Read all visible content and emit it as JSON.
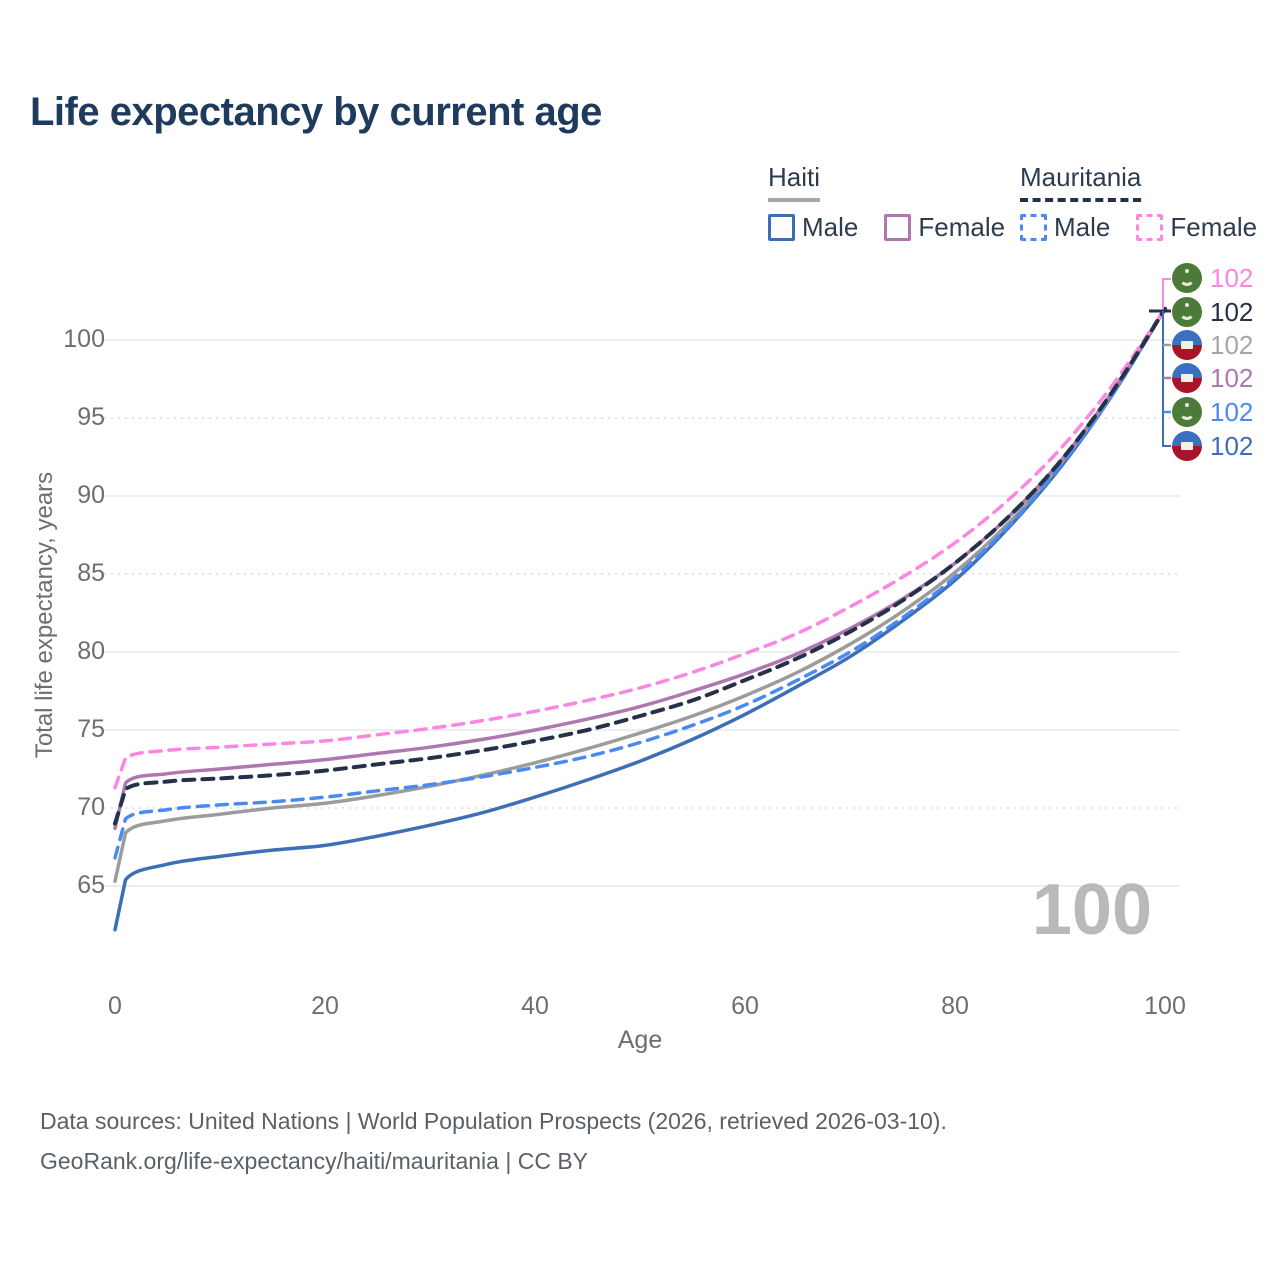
{
  "title": "Life expectancy by current age",
  "legend": {
    "groups": [
      {
        "name": "Haiti",
        "line_style": "solid",
        "underline_color": "#a8a8a8",
        "items": [
          {
            "label": "Male",
            "color": "#3d6fb7"
          },
          {
            "label": "Female",
            "color": "#b077ae"
          }
        ]
      },
      {
        "name": "Mauritania",
        "line_style": "dashed",
        "underline_color": "#243149",
        "items": [
          {
            "label": "Male",
            "color": "#4b8af2"
          },
          {
            "label": "Female",
            "color": "#fb87e0"
          }
        ]
      }
    ]
  },
  "axes": {
    "x": {
      "label": "Age",
      "ticks": [
        0,
        20,
        40,
        60,
        80,
        100
      ],
      "range": [
        0,
        100
      ]
    },
    "y": {
      "label": "Total life expectancy, years",
      "ticks": [
        {
          "value": 65,
          "grid": "solid"
        },
        {
          "value": 70,
          "grid": "dotted"
        },
        {
          "value": 75,
          "grid": "solid"
        },
        {
          "value": 80,
          "grid": "solid"
        },
        {
          "value": 85,
          "grid": "dotted"
        },
        {
          "value": 90,
          "grid": "solid"
        },
        {
          "value": 95,
          "grid": "dotted"
        },
        {
          "value": 100,
          "grid": "solid"
        }
      ],
      "range": [
        62,
        103
      ]
    }
  },
  "watermark": "100",
  "end_labels": [
    {
      "country": "mauritania",
      "value": "102",
      "color": "#fb87e0"
    },
    {
      "country": "mauritania",
      "value": "102",
      "color": "#243149"
    },
    {
      "country": "haiti",
      "value": "102",
      "color": "#a6a6a6"
    },
    {
      "country": "haiti",
      "value": "102",
      "color": "#b077ae"
    },
    {
      "country": "mauritania",
      "value": "102",
      "color": "#4b8af2"
    },
    {
      "country": "haiti",
      "value": "102",
      "color": "#3d6fb7"
    }
  ],
  "footer": {
    "line1": "Data sources: United Nations | World Population Prospects (2026, retrieved 2026-03-10).",
    "line2": "GeoRank.org/life-expectancy/haiti/mauritania | CC BY"
  },
  "chart_data": {
    "type": "line",
    "title": "Life expectancy by current age",
    "xlabel": "Age",
    "ylabel": "Total life expectancy, years",
    "xlim": [
      0,
      100
    ],
    "ylim": [
      62,
      103
    ],
    "grid": "horizontal-only",
    "legend_position": "top-right",
    "x": [
      0,
      1,
      5,
      10,
      15,
      20,
      25,
      30,
      35,
      40,
      45,
      50,
      55,
      60,
      65,
      70,
      75,
      80,
      85,
      90,
      95,
      100
    ],
    "series": [
      {
        "name": "Haiti Male",
        "country": "Haiti",
        "sex": "Male",
        "style": "solid",
        "color": "#3d6fb7",
        "values": [
          62.2,
          65.4,
          66.4,
          66.9,
          67.3,
          67.6,
          68.2,
          68.9,
          69.7,
          70.7,
          71.8,
          73.0,
          74.4,
          76.0,
          77.8,
          79.7,
          82.0,
          84.6,
          87.9,
          91.8,
          96.5,
          102
        ]
      },
      {
        "name": "Haiti",
        "country": "Haiti",
        "sex": "Both",
        "style": "solid",
        "color": "#9c9c9c",
        "values": [
          65.3,
          68.4,
          69.2,
          69.6,
          70.0,
          70.3,
          70.8,
          71.4,
          72.1,
          72.9,
          73.8,
          74.8,
          75.9,
          77.2,
          78.7,
          80.5,
          82.6,
          85.1,
          88.2,
          92.0,
          96.6,
          102
        ]
      },
      {
        "name": "Mauritania Male",
        "country": "Mauritania",
        "sex": "Male",
        "style": "dashed",
        "color": "#4b8af2",
        "values": [
          66.8,
          69.3,
          69.9,
          70.2,
          70.4,
          70.7,
          71.1,
          71.5,
          72.0,
          72.6,
          73.3,
          74.2,
          75.3,
          76.6,
          78.2,
          80.0,
          82.2,
          84.8,
          88.0,
          91.9,
          96.5,
          102
        ]
      },
      {
        "name": "Haiti Female",
        "country": "Haiti",
        "sex": "Female",
        "style": "solid",
        "color": "#b077ae",
        "values": [
          68.7,
          71.6,
          72.2,
          72.5,
          72.8,
          73.1,
          73.5,
          73.9,
          74.4,
          75.0,
          75.7,
          76.5,
          77.5,
          78.6,
          79.9,
          81.5,
          83.4,
          85.7,
          88.6,
          92.2,
          96.7,
          102
        ]
      },
      {
        "name": "Mauritania Female",
        "country": "Mauritania",
        "sex": "Female",
        "style": "dashed",
        "color": "#fb87e0",
        "values": [
          71.3,
          73.2,
          73.7,
          73.9,
          74.1,
          74.3,
          74.7,
          75.1,
          75.6,
          76.2,
          76.9,
          77.7,
          78.7,
          79.9,
          81.2,
          82.9,
          84.8,
          87.0,
          89.7,
          93.0,
          97.1,
          102
        ]
      },
      {
        "name": "Mauritania",
        "country": "Mauritania",
        "sex": "Both",
        "style": "dashed",
        "color": "#243149",
        "values": [
          69.0,
          71.2,
          71.7,
          71.9,
          72.1,
          72.4,
          72.8,
          73.2,
          73.7,
          74.3,
          75.0,
          75.9,
          76.9,
          78.2,
          79.6,
          81.3,
          83.3,
          85.7,
          88.6,
          92.2,
          96.7,
          102
        ]
      }
    ]
  }
}
